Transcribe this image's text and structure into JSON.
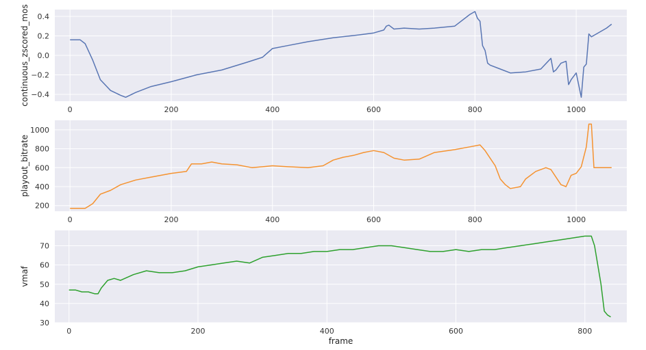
{
  "chart_data": [
    {
      "type": "line",
      "ylabel": "continuous_zscored_mos",
      "xlabel": "",
      "color": "#5875b3",
      "grid": true,
      "xlim": [
        -30,
        1100
      ],
      "ylim": [
        -0.47,
        0.47
      ],
      "xticks": [
        0,
        200,
        400,
        600,
        800,
        1000
      ],
      "yticks": [
        -0.4,
        -0.2,
        0.0,
        0.2,
        0.4
      ],
      "ytick_labels": [
        "−0.4",
        "−0.2",
        "0.0",
        "0.2",
        "0.4"
      ],
      "series": [
        {
          "x": [
            0,
            20,
            30,
            45,
            60,
            80,
            100,
            110,
            130,
            160,
            200,
            250,
            300,
            350,
            380,
            400,
            430,
            470,
            520,
            570,
            600,
            620,
            625,
            630,
            640,
            660,
            690,
            720,
            760,
            790,
            800,
            805,
            810,
            815,
            820,
            825,
            830,
            850,
            870,
            900,
            930,
            950,
            955,
            960,
            970,
            980,
            985,
            990,
            1000,
            1010,
            1015,
            1020,
            1025,
            1030,
            1040,
            1060,
            1070
          ],
          "y": [
            0.16,
            0.16,
            0.12,
            -0.05,
            -0.25,
            -0.36,
            -0.41,
            -0.43,
            -0.38,
            -0.32,
            -0.27,
            -0.2,
            -0.15,
            -0.07,
            -0.02,
            0.07,
            0.1,
            0.14,
            0.18,
            0.21,
            0.23,
            0.26,
            0.3,
            0.31,
            0.27,
            0.28,
            0.27,
            0.28,
            0.3,
            0.42,
            0.45,
            0.38,
            0.35,
            0.1,
            0.05,
            -0.08,
            -0.1,
            -0.14,
            -0.18,
            -0.17,
            -0.14,
            -0.03,
            -0.17,
            -0.15,
            -0.08,
            -0.06,
            -0.3,
            -0.25,
            -0.18,
            -0.43,
            -0.12,
            -0.09,
            0.22,
            0.19,
            0.22,
            0.28,
            0.32
          ]
        }
      ]
    },
    {
      "type": "line",
      "ylabel": "playout_bitrate",
      "xlabel": "",
      "color": "#f5922f",
      "grid": true,
      "xlim": [
        -30,
        1100
      ],
      "ylim": [
        140,
        1100
      ],
      "xticks": [
        0,
        200,
        400,
        600,
        800,
        1000
      ],
      "yticks": [
        200,
        400,
        600,
        800,
        1000
      ],
      "ytick_labels": [
        "200",
        "400",
        "600",
        "800",
        "1000"
      ],
      "series": [
        {
          "x": [
            0,
            30,
            45,
            60,
            80,
            100,
            130,
            160,
            200,
            230,
            240,
            260,
            280,
            300,
            330,
            360,
            400,
            430,
            470,
            500,
            520,
            540,
            560,
            580,
            600,
            620,
            640,
            660,
            690,
            720,
            760,
            790,
            810,
            820,
            830,
            840,
            850,
            860,
            870,
            890,
            900,
            920,
            940,
            950,
            970,
            980,
            990,
            1000,
            1010,
            1020,
            1025,
            1030,
            1035,
            1050,
            1070
          ],
          "y": [
            170,
            170,
            220,
            320,
            360,
            420,
            470,
            500,
            540,
            560,
            640,
            640,
            660,
            640,
            630,
            600,
            620,
            610,
            600,
            620,
            680,
            710,
            730,
            760,
            780,
            760,
            700,
            680,
            690,
            760,
            790,
            820,
            840,
            780,
            700,
            620,
            480,
            420,
            380,
            400,
            480,
            560,
            600,
            580,
            420,
            400,
            520,
            540,
            610,
            820,
            1060,
            1060,
            600,
            600,
            600
          ]
        }
      ]
    },
    {
      "type": "line",
      "ylabel": "vmaf",
      "xlabel": "frame",
      "color": "#2ca02c",
      "grid": true,
      "xlim": [
        -22,
        865
      ],
      "ylim": [
        30,
        78
      ],
      "xticks": [
        0,
        200,
        400,
        600,
        800
      ],
      "yticks": [
        30,
        40,
        50,
        60,
        70
      ],
      "ytick_labels": [
        "30",
        "40",
        "50",
        "60",
        "70"
      ],
      "series": [
        {
          "x": [
            0,
            10,
            20,
            30,
            40,
            45,
            50,
            60,
            70,
            80,
            100,
            120,
            140,
            160,
            180,
            200,
            220,
            240,
            260,
            280,
            300,
            320,
            340,
            360,
            380,
            400,
            420,
            440,
            460,
            480,
            500,
            520,
            540,
            560,
            580,
            600,
            620,
            640,
            660,
            680,
            700,
            720,
            740,
            760,
            780,
            800,
            810,
            815,
            820,
            825,
            830,
            835,
            840
          ],
          "y": [
            47,
            47,
            46,
            46,
            45,
            45,
            48,
            52,
            53,
            52,
            55,
            57,
            56,
            56,
            57,
            59,
            60,
            61,
            62,
            61,
            64,
            65,
            66,
            66,
            67,
            67,
            68,
            68,
            69,
            70,
            70,
            69,
            68,
            67,
            67,
            68,
            67,
            68,
            68,
            69,
            70,
            71,
            72,
            73,
            74,
            75,
            75,
            70,
            60,
            50,
            36,
            34,
            33
          ]
        }
      ]
    }
  ]
}
